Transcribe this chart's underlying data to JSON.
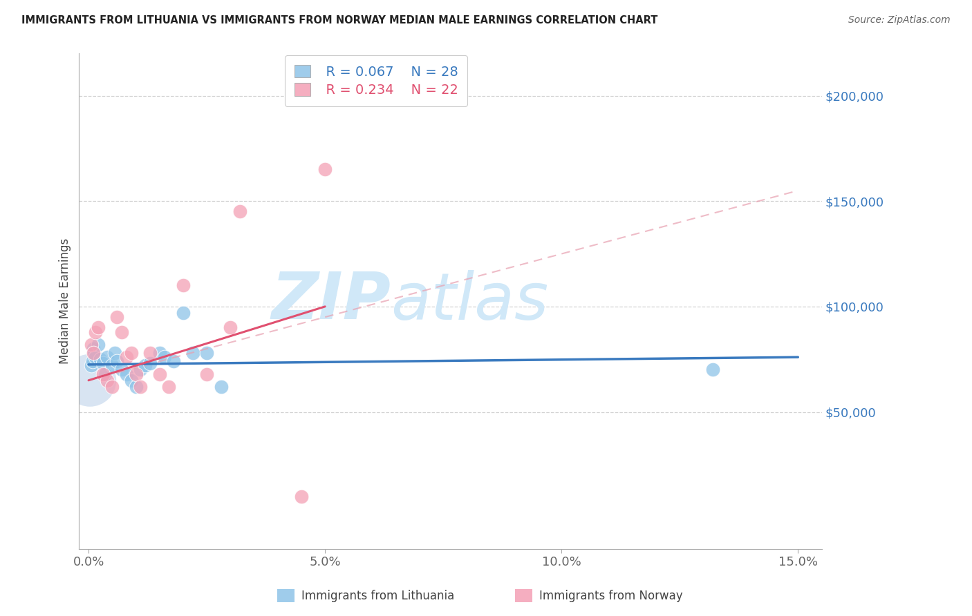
{
  "title": "IMMIGRANTS FROM LITHUANIA VS IMMIGRANTS FROM NORWAY MEDIAN MALE EARNINGS CORRELATION CHART",
  "source": "Source: ZipAtlas.com",
  "ylabel": "Median Male Earnings",
  "xlabel_ticks": [
    "0.0%",
    "5.0%",
    "10.0%",
    "15.0%"
  ],
  "ytick_vals": [
    0,
    50000,
    100000,
    150000,
    200000
  ],
  "ytick_labels": [
    "",
    "$50,000",
    "$100,000",
    "$150,000",
    "$200,000"
  ],
  "xlim": [
    -0.2,
    15.5
  ],
  "ylim": [
    -15000,
    220000
  ],
  "legend_r_blue": "R = 0.067",
  "legend_n_blue": "N = 28",
  "legend_r_pink": "R = 0.234",
  "legend_n_pink": "N = 22",
  "legend_label_blue": "Immigrants from Lithuania",
  "legend_label_pink": "Immigrants from Norway",
  "color_blue": "#8ec4e8",
  "color_pink": "#f4a0b5",
  "color_blue_line": "#3a7abf",
  "color_pink_line": "#e05070",
  "color_pink_dash": "#e8a0b0",
  "color_axis_labels": "#3a7abf",
  "watermark_zip": "ZIP",
  "watermark_atlas": "atlas",
  "watermark_color": "#d0e8f8",
  "lith_x": [
    0.05,
    0.08,
    0.1,
    0.12,
    0.15,
    0.2,
    0.25,
    0.3,
    0.35,
    0.4,
    0.5,
    0.55,
    0.6,
    0.7,
    0.8,
    0.9,
    1.0,
    1.1,
    1.2,
    1.3,
    1.5,
    1.6,
    1.8,
    2.0,
    2.2,
    2.5,
    2.8,
    13.2
  ],
  "lith_y": [
    72000,
    74000,
    80000,
    78000,
    76000,
    82000,
    75000,
    73000,
    68000,
    76000,
    72000,
    78000,
    74000,
    70000,
    68000,
    65000,
    62000,
    70000,
    72000,
    73000,
    78000,
    76000,
    74000,
    97000,
    78000,
    78000,
    62000,
    70000
  ],
  "norw_x": [
    0.05,
    0.1,
    0.15,
    0.2,
    0.3,
    0.4,
    0.5,
    0.6,
    0.7,
    0.8,
    0.9,
    1.0,
    1.1,
    1.3,
    1.5,
    1.7,
    2.0,
    2.5,
    3.0,
    4.5,
    5.0,
    3.2
  ],
  "norw_y": [
    82000,
    78000,
    88000,
    90000,
    68000,
    65000,
    62000,
    95000,
    88000,
    76000,
    78000,
    68000,
    62000,
    78000,
    68000,
    62000,
    110000,
    68000,
    90000,
    10000,
    165000,
    145000
  ],
  "big_dot_x": 0.03,
  "big_dot_y": 65000,
  "big_dot_size": 3000,
  "lith_line_x0": 0.0,
  "lith_line_y0": 72500,
  "lith_line_x1": 15.0,
  "lith_line_y1": 76000,
  "norw_solid_x0": 0.0,
  "norw_solid_y0": 65000,
  "norw_solid_x1": 5.0,
  "norw_solid_y1": 100000,
  "norw_dash_x0": 0.0,
  "norw_dash_y0": 65000,
  "norw_dash_x1": 15.0,
  "norw_dash_y1": 155000
}
